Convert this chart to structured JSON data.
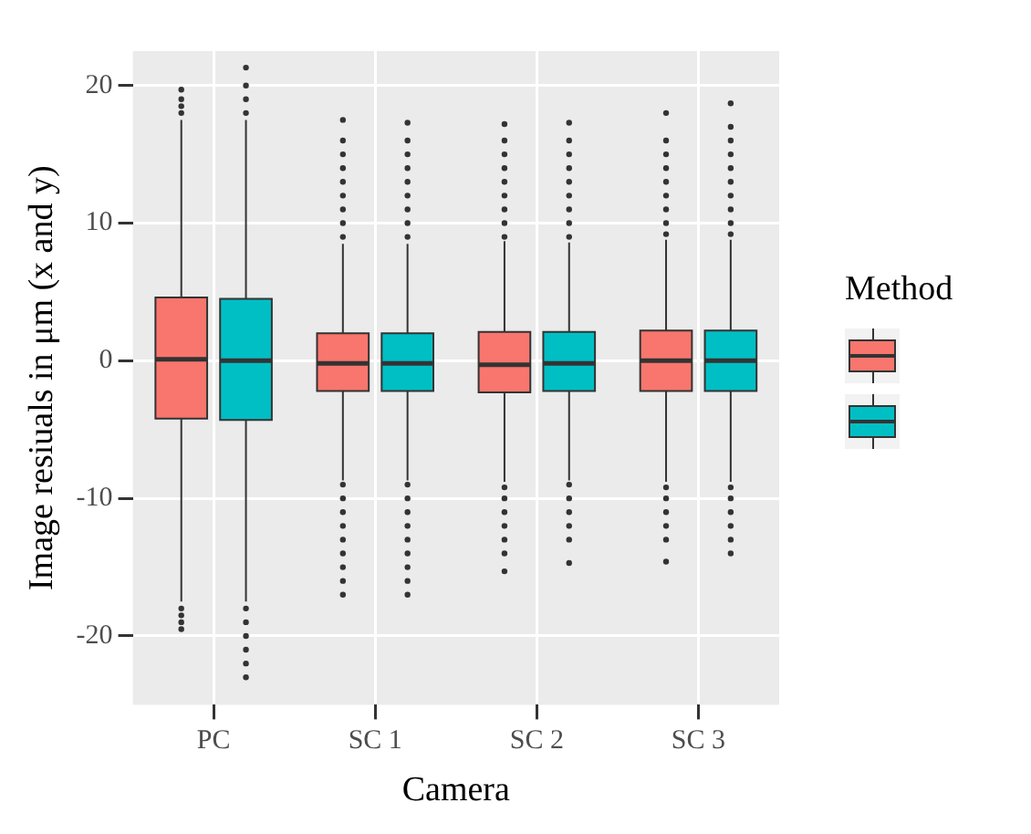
{
  "chart_data": {
    "type": "box",
    "xlabel": "Camera",
    "ylabel": "Image resiuals in μm (x and y)",
    "legend_title": "Method",
    "legend": false,
    "grid": true,
    "categories": [
      "PC",
      "SC 1",
      "SC 2",
      "SC 3"
    ],
    "ylim": [
      -25,
      22.5
    ],
    "yticks": [
      -20,
      -10,
      0,
      10,
      20
    ],
    "series": [
      {
        "color": "#f8766d",
        "boxes": [
          {
            "low": -17.5,
            "q1": -4.2,
            "median": 0.1,
            "q3": 4.6,
            "high": 17.5,
            "outliers": [
              18,
              18.5,
              19,
              19.7,
              -18,
              -18.5,
              -19,
              -19.5
            ]
          },
          {
            "low": -8.7,
            "q1": -2.2,
            "median": -0.2,
            "q3": 2.0,
            "high": 8.5,
            "outliers": [
              9,
              10,
              11,
              12,
              13,
              14,
              15,
              16,
              17.5,
              -9,
              -10,
              -11,
              -12,
              -13,
              -14,
              -15,
              -16,
              -17
            ]
          },
          {
            "low": -8.8,
            "q1": -2.3,
            "median": -0.3,
            "q3": 2.1,
            "high": 8.7,
            "outliers": [
              9,
              10,
              11,
              12,
              13,
              14,
              15,
              16,
              17.2,
              -9.2,
              -10,
              -11,
              -12,
              -13,
              -14,
              -15.3
            ]
          },
          {
            "low": -8.8,
            "q1": -2.2,
            "median": 0,
            "q3": 2.2,
            "high": 8.8,
            "outliers": [
              9.2,
              10,
              11,
              12,
              13,
              14,
              15,
              16,
              18,
              -9.2,
              -10,
              -11,
              -12,
              -13,
              -14.6
            ]
          }
        ]
      },
      {
        "color": "#00bfc4",
        "boxes": [
          {
            "low": -17.5,
            "q1": -4.3,
            "median": 0,
            "q3": 4.5,
            "high": 17.5,
            "outliers": [
              18,
              19,
              20,
              21.3,
              -18,
              -19,
              -20,
              -21,
              -22,
              -23
            ]
          },
          {
            "low": -8.7,
            "q1": -2.2,
            "median": -0.2,
            "q3": 2.0,
            "high": 8.5,
            "outliers": [
              9,
              10,
              11,
              12,
              13,
              14,
              15,
              16,
              17.3,
              -9,
              -10,
              -11,
              -12,
              -13,
              -14,
              -15,
              -16,
              -17
            ]
          },
          {
            "low": -8.7,
            "q1": -2.2,
            "median": -0.2,
            "q3": 2.1,
            "high": 8.6,
            "outliers": [
              9,
              10,
              11,
              12,
              13,
              14,
              15,
              16,
              17.3,
              -9,
              -10,
              -11,
              -12,
              -13,
              -14.7
            ]
          },
          {
            "low": -8.8,
            "q1": -2.2,
            "median": 0,
            "q3": 2.2,
            "high": 8.8,
            "outliers": [
              9.2,
              10,
              11,
              12,
              13,
              14,
              15,
              16,
              17,
              18.7,
              -9.2,
              -10,
              -11,
              -12,
              -13,
              -14
            ]
          }
        ]
      }
    ]
  }
}
